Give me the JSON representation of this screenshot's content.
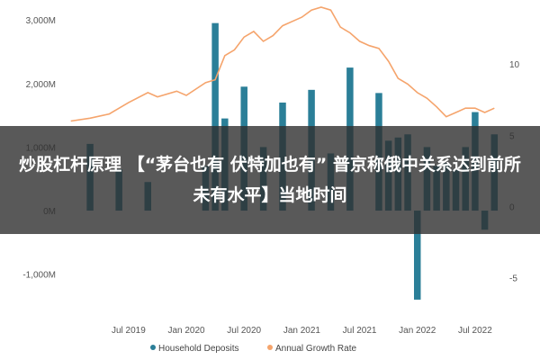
{
  "chart_data": {
    "type": "bar+line",
    "title": "",
    "xlabel": "",
    "ylabel_left": "",
    "ylabel_right": "",
    "left_axis": {
      "range": [
        -1500,
        3200
      ],
      "ticks": [
        -1000,
        0,
        1000,
        2000,
        3000
      ],
      "tick_labels": [
        "-1,000M",
        "0M",
        "1,000M",
        "2,000M",
        "3,000M"
      ]
    },
    "right_axis": {
      "range": [
        -7,
        14
      ],
      "ticks": [
        -5,
        0,
        5,
        10
      ],
      "tick_labels": [
        "-5",
        "0",
        "5",
        "10"
      ]
    },
    "x_ticks": [
      "Jul 2019",
      "Jan 2020",
      "Jul 2020",
      "Jan 2021",
      "Jul 2021",
      "Jan 2022",
      "Jul 2022"
    ],
    "x_start": "2018-12",
    "x_end": "2022-10",
    "grid": false,
    "legend_position": "bottom",
    "series": [
      {
        "name": "Household Deposits",
        "type": "bar",
        "color": "#2b7f98",
        "points": [
          {
            "x": "2019-03",
            "y": 1050
          },
          {
            "x": "2019-06",
            "y": 650
          },
          {
            "x": "2019-09",
            "y": 450
          },
          {
            "x": "2020-03",
            "y": 700
          },
          {
            "x": "2020-04",
            "y": 2950
          },
          {
            "x": "2020-05",
            "y": 1450
          },
          {
            "x": "2020-07",
            "y": 1950
          },
          {
            "x": "2020-09",
            "y": 1000
          },
          {
            "x": "2020-11",
            "y": 1700
          },
          {
            "x": "2021-02",
            "y": 1900
          },
          {
            "x": "2021-04",
            "y": 900
          },
          {
            "x": "2021-06",
            "y": 2250
          },
          {
            "x": "2021-09",
            "y": 1850
          },
          {
            "x": "2021-10",
            "y": 1100
          },
          {
            "x": "2021-11",
            "y": 1150
          },
          {
            "x": "2021-12",
            "y": 1200
          },
          {
            "x": "2022-01",
            "y": -1400
          },
          {
            "x": "2022-02",
            "y": 1000
          },
          {
            "x": "2022-03",
            "y": 700
          },
          {
            "x": "2022-04",
            "y": 750
          },
          {
            "x": "2022-05",
            "y": 650
          },
          {
            "x": "2022-06",
            "y": 1000
          },
          {
            "x": "2022-07",
            "y": 1550
          },
          {
            "x": "2022-08",
            "y": -300
          },
          {
            "x": "2022-09",
            "y": 1200
          }
        ]
      },
      {
        "name": "Annual Growth Rate",
        "type": "line",
        "axis": "right",
        "color": "#f5a46c",
        "points": [
          {
            "x": "2019-01",
            "y": 6.0
          },
          {
            "x": "2019-03",
            "y": 6.2
          },
          {
            "x": "2019-05",
            "y": 6.5
          },
          {
            "x": "2019-07",
            "y": 7.3
          },
          {
            "x": "2019-09",
            "y": 8.0
          },
          {
            "x": "2019-10",
            "y": 7.7
          },
          {
            "x": "2019-12",
            "y": 8.1
          },
          {
            "x": "2020-01",
            "y": 7.8
          },
          {
            "x": "2020-03",
            "y": 8.7
          },
          {
            "x": "2020-04",
            "y": 8.9
          },
          {
            "x": "2020-05",
            "y": 10.6
          },
          {
            "x": "2020-06",
            "y": 11.0
          },
          {
            "x": "2020-07",
            "y": 11.9
          },
          {
            "x": "2020-08",
            "y": 12.3
          },
          {
            "x": "2020-09",
            "y": 11.6
          },
          {
            "x": "2020-10",
            "y": 12.0
          },
          {
            "x": "2020-11",
            "y": 12.7
          },
          {
            "x": "2020-12",
            "y": 13.0
          },
          {
            "x": "2021-01",
            "y": 13.3
          },
          {
            "x": "2021-02",
            "y": 13.8
          },
          {
            "x": "2021-03",
            "y": 14.0
          },
          {
            "x": "2021-04",
            "y": 13.8
          },
          {
            "x": "2021-05",
            "y": 12.6
          },
          {
            "x": "2021-06",
            "y": 12.2
          },
          {
            "x": "2021-07",
            "y": 11.6
          },
          {
            "x": "2021-08",
            "y": 11.3
          },
          {
            "x": "2021-09",
            "y": 11.1
          },
          {
            "x": "2021-10",
            "y": 10.2
          },
          {
            "x": "2021-11",
            "y": 9.0
          },
          {
            "x": "2021-12",
            "y": 8.6
          },
          {
            "x": "2022-01",
            "y": 8.0
          },
          {
            "x": "2022-02",
            "y": 7.6
          },
          {
            "x": "2022-03",
            "y": 7.0
          },
          {
            "x": "2022-04",
            "y": 6.3
          },
          {
            "x": "2022-05",
            "y": 6.6
          },
          {
            "x": "2022-06",
            "y": 6.9
          },
          {
            "x": "2022-07",
            "y": 6.9
          },
          {
            "x": "2022-08",
            "y": 6.6
          },
          {
            "x": "2022-09",
            "y": 6.9
          }
        ]
      }
    ]
  },
  "overlay": {
    "headline": "炒股杠杆原理 【“茅台也有 伏特加也有” 普京称俄中关系达到前所未有水平】当地时间"
  }
}
